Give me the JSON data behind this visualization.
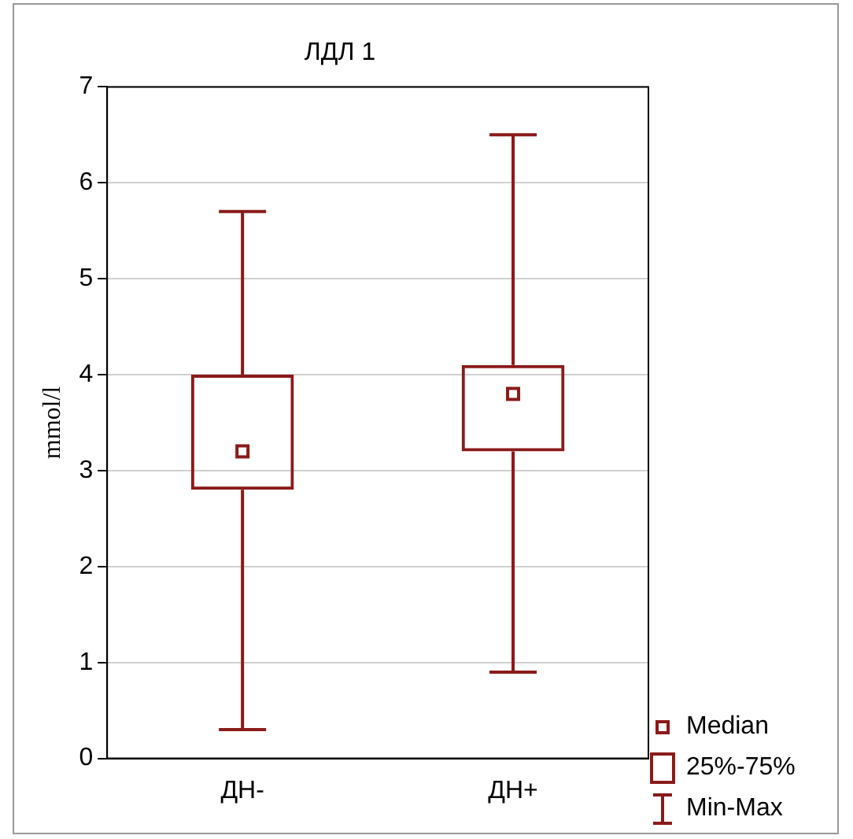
{
  "chart_data": {
    "type": "box",
    "title": "ЛДЛ 1",
    "ylabel": "mmol/l",
    "categories": [
      "ДН-",
      "ДН+"
    ],
    "boxes": [
      {
        "low": 0.3,
        "q1": 2.8,
        "median": 3.2,
        "q3": 4.0,
        "high": 5.7
      },
      {
        "low": 0.9,
        "q1": 3.2,
        "median": 3.8,
        "q3": 4.1,
        "high": 6.5
      }
    ],
    "color": "#8b1a1a",
    "ylim": [
      0,
      7
    ],
    "yticks": [
      0,
      1,
      2,
      3,
      4,
      5,
      6,
      7
    ],
    "grid": "y",
    "marker": "square",
    "annotations": [
      "Median",
      "25%-75%",
      "Min-Max"
    ]
  }
}
